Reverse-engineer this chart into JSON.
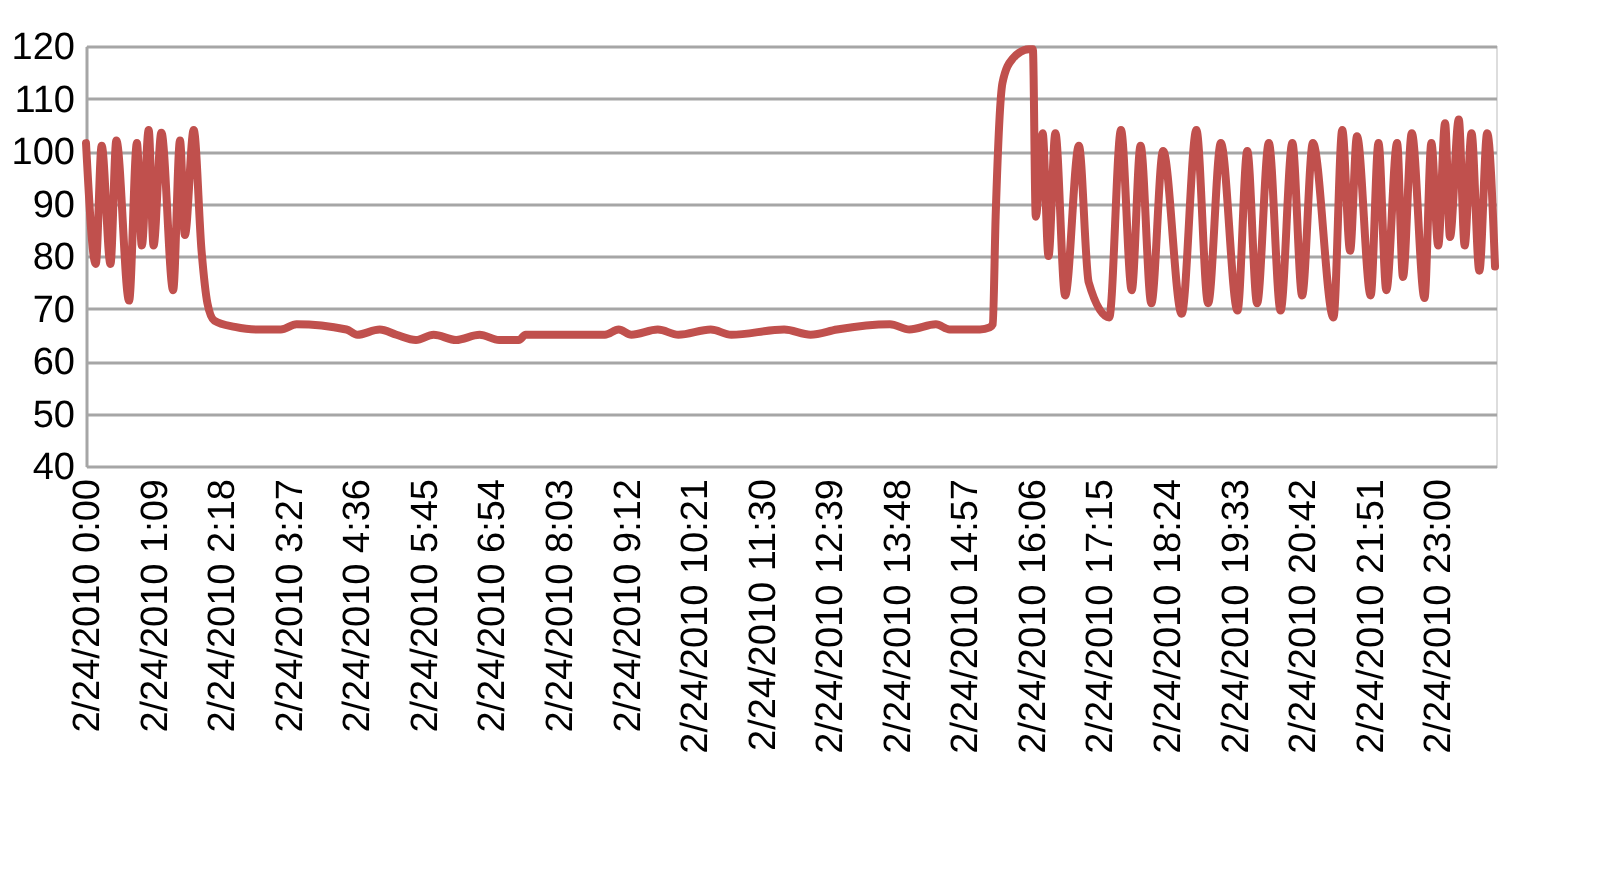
{
  "chart_data": {
    "type": "line",
    "x": [
      "2010-02-24T00:00",
      "2010-02-24T00:10",
      "2010-02-24T00:16",
      "2010-02-24T00:25",
      "2010-02-24T00:31",
      "2010-02-24T00:44",
      "2010-02-24T00:52",
      "2010-02-24T00:57",
      "2010-02-24T01:04",
      "2010-02-24T01:09",
      "2010-02-24T01:17",
      "2010-02-24T01:29",
      "2010-02-24T01:36",
      "2010-02-24T01:41",
      "2010-02-24T01:50",
      "2010-02-24T01:58",
      "2010-02-24T02:04",
      "2010-02-24T02:11",
      "2010-02-24T02:32",
      "2010-02-24T02:54",
      "2010-02-24T03:19",
      "2010-02-24T03:35",
      "2010-02-24T04:26",
      "2010-02-24T04:37",
      "2010-02-24T05:00",
      "2010-02-24T05:17",
      "2010-02-24T05:37",
      "2010-02-24T05:55",
      "2010-02-24T06:18",
      "2010-02-24T06:42",
      "2010-02-24T07:02",
      "2010-02-24T07:22",
      "2010-02-24T07:29",
      "2010-02-24T08:50",
      "2010-02-24T09:04",
      "2010-02-24T09:17",
      "2010-02-24T09:44",
      "2010-02-24T10:05",
      "2010-02-24T10:38",
      "2010-02-24T10:59",
      "2010-02-24T11:53",
      "2010-02-24T12:20",
      "2010-02-24T12:47",
      "2010-02-24T13:41",
      "2010-02-24T14:01",
      "2010-02-24T14:28",
      "2010-02-24T14:42",
      "2010-02-24T15:13",
      "2010-02-24T15:23",
      "2010-02-24T15:26",
      "2010-02-24T15:29",
      "2010-02-24T15:36",
      "2010-02-24T15:46",
      "2010-02-24T16:03",
      "2010-02-24T16:07",
      "2010-02-24T16:10",
      "2010-02-24T16:17",
      "2010-02-24T16:23",
      "2010-02-24T16:30",
      "2010-02-24T16:40",
      "2010-02-24T16:54",
      "2010-02-24T17:04",
      "2010-02-24T17:25",
      "2010-02-24T17:37",
      "2010-02-24T17:48",
      "2010-02-24T17:57",
      "2010-02-24T18:08",
      "2010-02-24T18:20",
      "2010-02-24T18:39",
      "2010-02-24T18:54",
      "2010-02-24T19:06",
      "2010-02-24T19:19",
      "2010-02-24T19:36",
      "2010-02-24T19:46",
      "2010-02-24T19:56",
      "2010-02-24T20:08",
      "2010-02-24T20:20",
      "2010-02-24T20:32",
      "2010-02-24T20:42",
      "2010-02-24T20:53",
      "2010-02-24T21:14",
      "2010-02-24T21:23",
      "2010-02-24T21:31",
      "2010-02-24T21:38",
      "2010-02-24T21:52",
      "2010-02-24T22:00",
      "2010-02-24T22:08",
      "2010-02-24T22:19",
      "2010-02-24T22:25",
      "2010-02-24T22:34",
      "2010-02-24T22:47",
      "2010-02-24T22:54",
      "2010-02-24T23:01",
      "2010-02-24T23:08",
      "2010-02-24T23:13",
      "2010-02-24T23:22",
      "2010-02-24T23:28",
      "2010-02-24T23:35",
      "2010-02-24T23:43",
      "2010-02-24T23:51",
      "2010-02-24T23:59"
    ],
    "series": [
      {
        "color": "#c0504d",
        "values": [
          101.5,
          78.5,
          101,
          78.5,
          102,
          71.5,
          101.5,
          82,
          104,
          82,
          103.5,
          73.5,
          102,
          84,
          104,
          81,
          71,
          67.7,
          66.5,
          66,
          66,
          67,
          66,
          65,
          66,
          65,
          64,
          65,
          64,
          65,
          64,
          64,
          65,
          65,
          66,
          65,
          66,
          65,
          66,
          65,
          66,
          65,
          66,
          67,
          66,
          67,
          66,
          66,
          66.4,
          67,
          87.5,
          113,
          117.5,
          119.4,
          119.4,
          87.5,
          103.4,
          80,
          103.4,
          72.5,
          101,
          75,
          68.3,
          104,
          73.5,
          101,
          71,
          100,
          69,
          104,
          71,
          101.5,
          69.6,
          100,
          71,
          101.5,
          69.6,
          101.5,
          72.5,
          101.5,
          68.3,
          104,
          81,
          102.8,
          72.5,
          101.5,
          73.5,
          101.5,
          76,
          103.4,
          72,
          101.5,
          82,
          105.3,
          83.6,
          106,
          82,
          103.4,
          77.2,
          103.4,
          78
        ]
      }
    ],
    "xlim": [
      "2010-02-24T00:00",
      "2010-02-25T00:00"
    ],
    "xticks": [
      {
        "value": "2010-02-24T00:00",
        "label": "2/24/2010 0:00"
      },
      {
        "value": "2010-02-24T01:09",
        "label": "2/24/2010 1:09"
      },
      {
        "value": "2010-02-24T02:18",
        "label": "2/24/2010 2:18"
      },
      {
        "value": "2010-02-24T03:27",
        "label": "2/24/2010 3:27"
      },
      {
        "value": "2010-02-24T04:36",
        "label": "2/24/2010 4:36"
      },
      {
        "value": "2010-02-24T05:45",
        "label": "2/24/2010 5:45"
      },
      {
        "value": "2010-02-24T06:54",
        "label": "2/24/2010 6:54"
      },
      {
        "value": "2010-02-24T08:03",
        "label": "2/24/2010 8:03"
      },
      {
        "value": "2010-02-24T09:12",
        "label": "2/24/2010 9:12"
      },
      {
        "value": "2010-02-24T10:21",
        "label": "2/24/2010 10:21"
      },
      {
        "value": "2010-02-24T11:30",
        "label": "2/24/2010 11:30"
      },
      {
        "value": "2010-02-24T12:39",
        "label": "2/24/2010 12:39"
      },
      {
        "value": "2010-02-24T13:48",
        "label": "2/24/2010 13:48"
      },
      {
        "value": "2010-02-24T14:57",
        "label": "2/24/2010 14:57"
      },
      {
        "value": "2010-02-24T16:06",
        "label": "2/24/2010 16:06"
      },
      {
        "value": "2010-02-24T17:15",
        "label": "2/24/2010 17:15"
      },
      {
        "value": "2010-02-24T18:24",
        "label": "2/24/2010 18:24"
      },
      {
        "value": "2010-02-24T19:33",
        "label": "2/24/2010 19:33"
      },
      {
        "value": "2010-02-24T20:42",
        "label": "2/24/2010 20:42"
      },
      {
        "value": "2010-02-24T21:51",
        "label": "2/24/2010 21:51"
      },
      {
        "value": "2010-02-24T23:00",
        "label": "2/24/2010 23:00"
      }
    ],
    "ylim": [
      40,
      120
    ],
    "yticks": [
      40,
      50,
      60,
      70,
      80,
      90,
      100,
      110,
      120
    ],
    "grid": "y",
    "legend": false,
    "marker": "none",
    "line_style": "solid"
  }
}
